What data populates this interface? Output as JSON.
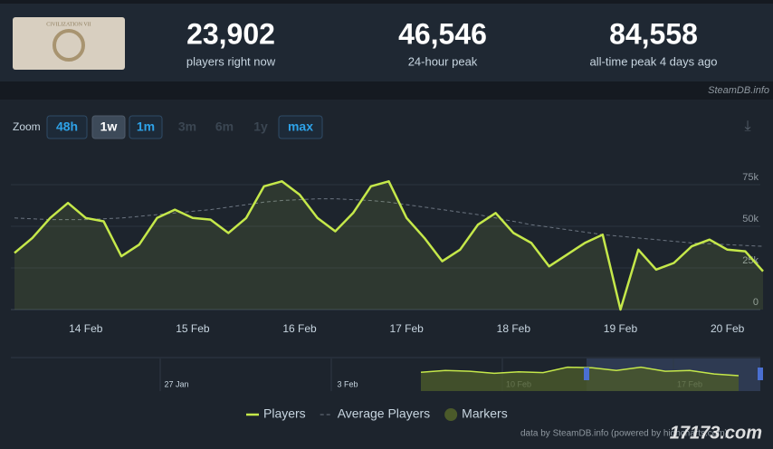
{
  "header": {
    "game_logo_text": "CIVILIZATION VII",
    "stats": [
      {
        "value": "23,902",
        "label": "players right now"
      },
      {
        "value": "46,546",
        "label": "24-hour peak"
      },
      {
        "value": "84,558",
        "label": "all-time peak 4 days ago"
      }
    ],
    "site": "SteamDB.info"
  },
  "zoom": {
    "label": "Zoom",
    "buttons": [
      {
        "text": "48h",
        "state": "enabled"
      },
      {
        "text": "1w",
        "state": "selected"
      },
      {
        "text": "1m",
        "state": "enabled"
      },
      {
        "text": "3m",
        "state": "disabled"
      },
      {
        "text": "6m",
        "state": "disabled"
      },
      {
        "text": "1y",
        "state": "disabled"
      },
      {
        "text": "max",
        "state": "enabled"
      }
    ]
  },
  "chart_data": [
    {
      "type": "line",
      "categories": [
        null,
        null,
        null,
        null,
        "14 Feb",
        null,
        null,
        null,
        null,
        null,
        "15 Feb",
        null,
        null,
        null,
        null,
        null,
        "16 Feb",
        null,
        null,
        null,
        null,
        null,
        "17 Feb",
        null,
        null,
        null,
        null,
        null,
        "18 Feb",
        null,
        null,
        null,
        null,
        null,
        "19 Feb",
        null,
        null,
        null,
        null,
        null,
        "20 Feb",
        null,
        null
      ],
      "series": [
        {
          "name": "Players",
          "color": "#c5e84a",
          "style": "solid",
          "area": true,
          "values": [
            34000,
            43000,
            55000,
            64000,
            55000,
            53000,
            32000,
            39000,
            55000,
            60000,
            55000,
            54000,
            46000,
            55000,
            74000,
            77000,
            69000,
            55000,
            47000,
            58000,
            74000,
            77000,
            55000,
            43000,
            29000,
            36000,
            51000,
            58000,
            46000,
            40000,
            26000,
            33000,
            40000,
            45000,
            0,
            36000,
            24000,
            28000,
            38000,
            42000,
            36000,
            35000,
            23000
          ]
        },
        {
          "name": "Average Players",
          "color": "#6b7480",
          "style": "dashed",
          "area": false,
          "values": [
            55000,
            54500,
            54000,
            54000,
            54000,
            54500,
            55000,
            56000,
            57000,
            58000,
            59000,
            60000,
            61500,
            63000,
            64500,
            65500,
            66000,
            66500,
            66500,
            66000,
            65500,
            64500,
            63000,
            61500,
            60000,
            58500,
            57000,
            55000,
            53000,
            51000,
            49500,
            48000,
            46500,
            45000,
            44000,
            43000,
            42000,
            41000,
            40000,
            39500,
            39000,
            38500,
            38000
          ]
        }
      ],
      "markers_label": "Markers",
      "markers_color": "#4b5a2a",
      "ylim": [
        0,
        100000
      ],
      "yticks": [
        0,
        {
          "value": 25000,
          "label": "25k"
        },
        {
          "value": 50000,
          "label": "50k"
        },
        {
          "value": 75000,
          "label": "75k"
        }
      ],
      "grid": true
    },
    {
      "type": "area",
      "categories": [
        "27 Jan",
        null,
        null,
        null,
        null,
        null,
        null,
        "3 Feb",
        null,
        null,
        null,
        null,
        null,
        null,
        "10 Feb",
        null,
        null,
        null,
        null,
        null,
        null,
        "17 Feb",
        null,
        null
      ],
      "values": [
        null,
        null,
        null,
        null,
        null,
        null,
        null,
        null,
        null,
        null,
        55000,
        60000,
        58000,
        52000,
        56000,
        54000,
        70000,
        68000,
        60000,
        70000,
        58000,
        60000,
        50000,
        45000
      ],
      "color": "#c5e84a",
      "ylim": [
        0,
        90000
      ]
    }
  ],
  "footer": {
    "credit": "data by SteamDB.info (powered by highcharts.com)",
    "watermark": "17173.com"
  }
}
